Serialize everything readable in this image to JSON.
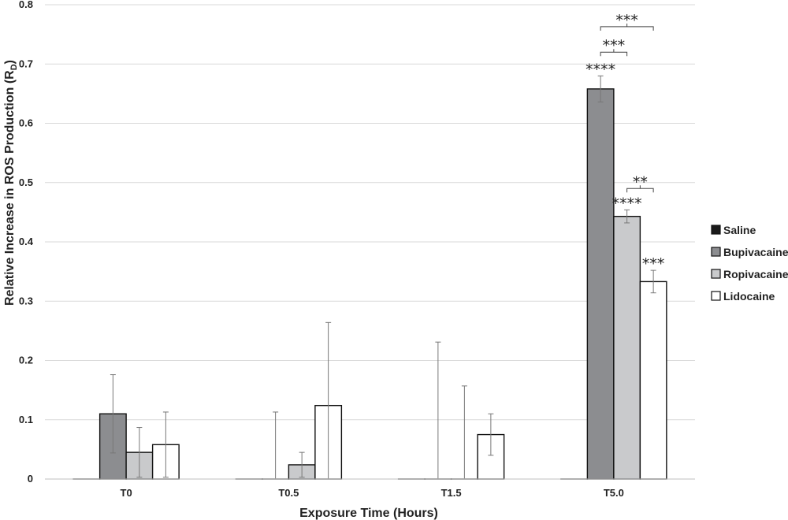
{
  "chart_data": {
    "type": "bar",
    "title": "",
    "xlabel": "Exposure Time (Hours)",
    "ylabel_main": "Relative Increase in ROS Production (R",
    "ylabel_sub": "D",
    "ylabel_close": ")",
    "categories": [
      "T0",
      "T0.5",
      "T1.5",
      "T5.0"
    ],
    "ylim": [
      0,
      0.8
    ],
    "yticks": [
      "0",
      "0.1",
      "0.2",
      "0.3",
      "0.4",
      "0.5",
      "0.6",
      "0.7",
      "0.8"
    ],
    "grid": true,
    "legend_position": "right",
    "series": [
      {
        "name": "Saline",
        "color": "#1a1a1a",
        "values": [
          0,
          0,
          0,
          0
        ],
        "error": [
          0,
          0,
          0,
          0
        ]
      },
      {
        "name": "Bupivacaine",
        "color": "#8c8d90",
        "values": [
          0.11,
          0,
          0,
          0.658
        ],
        "error": [
          0.066,
          0.113,
          0.231,
          0.022
        ]
      },
      {
        "name": "Ropivacaine",
        "color": "#c9cacc",
        "values": [
          0.045,
          0.024,
          0,
          0.443
        ],
        "error": [
          0.042,
          0.021,
          0.157,
          0.011
        ]
      },
      {
        "name": "Lidocaine",
        "color": "#ffffff",
        "values": [
          0.058,
          0.124,
          0.075,
          0.333
        ],
        "error": [
          0.055,
          0.14,
          0.035,
          0.019
        ]
      }
    ],
    "annotations": [
      {
        "text": "****",
        "category": "T5.0",
        "series": "Bupivacaine"
      },
      {
        "text": "****",
        "category": "T5.0",
        "series": "Ropivacaine"
      },
      {
        "text": "***",
        "category": "T5.0",
        "series": "Lidocaine"
      }
    ],
    "brackets": [
      {
        "text": "***",
        "category": "T5.0",
        "from": "Bupivacaine",
        "to": "Ropivacaine",
        "level": 0.72
      },
      {
        "text": "***",
        "category": "T5.0",
        "from": "Bupivacaine",
        "to": "Lidocaine",
        "level": 0.763
      },
      {
        "text": "**",
        "category": "T5.0",
        "from": "Ropivacaine",
        "to": "Lidocaine",
        "level": 0.49
      }
    ]
  }
}
